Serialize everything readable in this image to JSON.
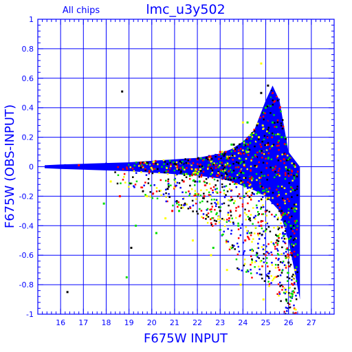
{
  "header": {
    "chips_label": "All chips",
    "dataset_label": "lmc_u3y502"
  },
  "colors": {
    "axis": "#0000ff",
    "grid": "#0000ff",
    "series_main": "#0000ff",
    "scatter_palette": [
      "#ff0000",
      "#00dd00",
      "#ffff00",
      "#000000",
      "#0000ff"
    ]
  },
  "chart_data": {
    "type": "scatter",
    "title": "lmc_u3y502",
    "subtitle": "All chips",
    "xlabel": "F675W INPUT",
    "ylabel": "F675W (OBS-INPUT)",
    "xlim": [
      15,
      28
    ],
    "ylim": [
      -1,
      1
    ],
    "x_ticks": [
      "16",
      "17",
      "18",
      "19",
      "20",
      "21",
      "22",
      "23",
      "24",
      "25",
      "26",
      "27"
    ],
    "y_ticks": [
      "1",
      "0.8",
      "0.6",
      "0.4",
      "0.2",
      "0",
      "-0.2",
      "-0.4",
      "-0.6",
      "-0.8",
      "-1"
    ],
    "grid": true,
    "envelope": {
      "x": [
        15.3,
        16,
        17,
        18,
        19,
        20,
        21,
        22,
        23,
        23.5,
        24,
        24.5,
        25,
        25.3,
        25.6,
        26,
        26.5
      ],
      "upper": [
        0.01,
        0.015,
        0.02,
        0.025,
        0.03,
        0.04,
        0.05,
        0.06,
        0.09,
        0.12,
        0.17,
        0.25,
        0.45,
        0.55,
        0.45,
        0.1,
        0.0
      ],
      "lower": [
        -0.01,
        -0.015,
        -0.02,
        -0.025,
        -0.03,
        -0.04,
        -0.05,
        -0.06,
        -0.08,
        -0.1,
        -0.13,
        -0.16,
        -0.2,
        -0.25,
        -0.3,
        -0.5,
        -0.9
      ]
    },
    "series": [
      {
        "color": "#0000ff",
        "points": [
          [
            15.5,
            0.0
          ],
          [
            16.2,
            0.01
          ],
          [
            17.1,
            -0.01
          ],
          [
            18.0,
            0.02
          ],
          [
            19.2,
            -0.02
          ],
          [
            20.5,
            0.03
          ],
          [
            21.6,
            0.05
          ],
          [
            22.8,
            0.08
          ],
          [
            23.6,
            0.12
          ],
          [
            24.3,
            0.2
          ],
          [
            24.9,
            0.35
          ],
          [
            25.2,
            0.4
          ],
          [
            25.5,
            0.3
          ],
          [
            25.8,
            -0.15
          ],
          [
            24.6,
            -0.12
          ],
          [
            23.9,
            -0.08
          ],
          [
            22.5,
            -0.03
          ],
          [
            21.0,
            -0.02
          ],
          [
            23.2,
            0.06
          ],
          [
            25.0,
            -0.3
          ]
        ]
      },
      {
        "color": "#ff0000",
        "points": [
          [
            18.6,
            -0.2
          ],
          [
            20.9,
            -0.3
          ],
          [
            22.3,
            -0.2
          ],
          [
            23.4,
            -0.35
          ],
          [
            24.1,
            -0.5
          ],
          [
            24.8,
            -0.4
          ],
          [
            25.3,
            0.5
          ],
          [
            25.6,
            -0.7
          ],
          [
            26.0,
            -0.6
          ],
          [
            26.2,
            -0.8
          ],
          [
            19.5,
            0.02
          ],
          [
            22.0,
            0.05
          ],
          [
            23.0,
            0.1
          ],
          [
            24.5,
            0.25
          ],
          [
            25.1,
            0.15
          ],
          [
            25.8,
            0.05
          ],
          [
            16.8,
            0.01
          ],
          [
            21.4,
            -0.1
          ]
        ]
      },
      {
        "color": "#00dd00",
        "points": [
          [
            17.9,
            -0.25
          ],
          [
            19.3,
            -0.4
          ],
          [
            21.2,
            -0.3
          ],
          [
            22.7,
            -0.55
          ],
          [
            23.8,
            -0.4
          ],
          [
            24.6,
            -0.6
          ],
          [
            25.0,
            0.4
          ],
          [
            25.3,
            0.3
          ],
          [
            25.7,
            0.2
          ],
          [
            26.1,
            -0.4
          ],
          [
            25.9,
            -0.9
          ],
          [
            18.9,
            -0.75
          ],
          [
            20.2,
            -0.45
          ],
          [
            23.5,
            0.15
          ],
          [
            24.2,
            0.3
          ],
          [
            22.1,
            -0.1
          ]
        ]
      },
      {
        "color": "#ffff00",
        "points": [
          [
            18.2,
            -0.1
          ],
          [
            19.8,
            -0.2
          ],
          [
            20.6,
            -0.35
          ],
          [
            21.8,
            -0.5
          ],
          [
            22.6,
            -0.6
          ],
          [
            23.3,
            -0.7
          ],
          [
            23.9,
            -0.8
          ],
          [
            24.4,
            -0.65
          ],
          [
            24.9,
            -0.9
          ],
          [
            25.4,
            -0.75
          ],
          [
            25.9,
            -0.85
          ],
          [
            26.3,
            -0.7
          ],
          [
            24.0,
            0.3
          ],
          [
            24.7,
            0.2
          ],
          [
            23.1,
            0.1
          ],
          [
            24.8,
            0.7
          ],
          [
            21.5,
            -0.05
          ],
          [
            22.9,
            -0.25
          ]
        ]
      },
      {
        "color": "#000000",
        "points": [
          [
            18.7,
            0.51
          ],
          [
            21.9,
            -0.1
          ],
          [
            23.0,
            -0.3
          ],
          [
            24.3,
            -0.35
          ],
          [
            24.8,
            0.5
          ],
          [
            25.1,
            0.55
          ],
          [
            25.5,
            -0.5
          ],
          [
            26.0,
            -0.65
          ],
          [
            23.6,
            0.15
          ],
          [
            22.4,
            0.06
          ],
          [
            20.7,
            -0.15
          ],
          [
            19.1,
            -0.55
          ],
          [
            16.3,
            -0.85
          ],
          [
            21.0,
            0.02
          ],
          [
            25.7,
            -0.3
          ]
        ]
      }
    ]
  }
}
